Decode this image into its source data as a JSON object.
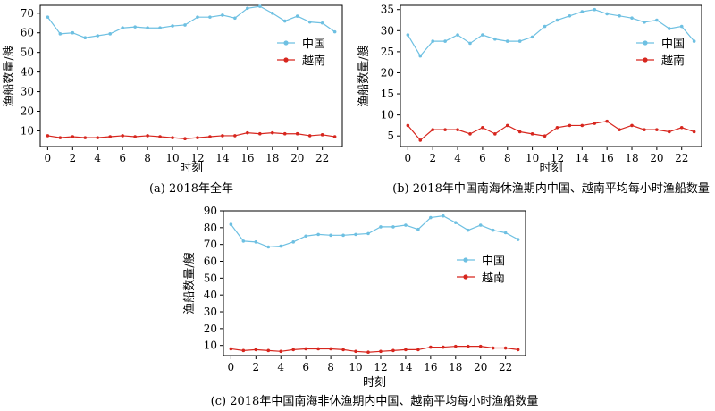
{
  "colors": {
    "china": "#6ec0e2",
    "vietnam": "#d7261e"
  },
  "chart_data": [
    {
      "type": "line",
      "caption": "(a) 2018年全年",
      "xlabel": "时刻",
      "ylabel": "渔船数量/艘",
      "x": [
        0,
        1,
        2,
        3,
        4,
        5,
        6,
        7,
        8,
        9,
        10,
        11,
        12,
        13,
        14,
        15,
        16,
        17,
        18,
        19,
        20,
        21,
        22,
        23
      ],
      "xticks": [
        0,
        2,
        4,
        6,
        8,
        10,
        12,
        14,
        16,
        18,
        20,
        22
      ],
      "ylim": [
        2,
        74
      ],
      "yticks": [
        10,
        20,
        30,
        40,
        50,
        60,
        70
      ],
      "legend_position": "center-right",
      "series": [
        {
          "name": "中国",
          "color": "#6ec0e2",
          "values": [
            68,
            59.5,
            60,
            57.5,
            58.5,
            59.5,
            62.5,
            63,
            62.5,
            62.5,
            63.5,
            64,
            68,
            68,
            69,
            67.5,
            72.5,
            73.5,
            70,
            66,
            68.5,
            65.5,
            65,
            60.5
          ]
        },
        {
          "name": "越南",
          "color": "#d7261e",
          "values": [
            7.5,
            6.5,
            7,
            6.5,
            6.5,
            7,
            7.5,
            7,
            7.5,
            7,
            6.5,
            6,
            6.5,
            7,
            7.5,
            7.5,
            9,
            8.5,
            9,
            8.5,
            8.5,
            7.5,
            8,
            7
          ]
        }
      ]
    },
    {
      "type": "line",
      "caption": "(b) 2018年中国南海休渔期内中国、越南平均每小时渔船数量",
      "xlabel": "时刻",
      "ylabel": "渔船数量/艘",
      "x": [
        0,
        1,
        2,
        3,
        4,
        5,
        6,
        7,
        8,
        9,
        10,
        11,
        12,
        13,
        14,
        15,
        16,
        17,
        18,
        19,
        20,
        21,
        22,
        23
      ],
      "xticks": [
        0,
        2,
        4,
        6,
        8,
        10,
        12,
        14,
        16,
        18,
        20,
        22
      ],
      "ylim": [
        2.5,
        36
      ],
      "yticks": [
        5,
        10,
        15,
        20,
        25,
        30,
        35
      ],
      "legend_position": "center-right",
      "series": [
        {
          "name": "中国",
          "color": "#6ec0e2",
          "values": [
            29,
            24,
            27.5,
            27.5,
            29,
            27,
            29,
            28,
            27.5,
            27.5,
            28.5,
            31,
            32.5,
            33.5,
            34.5,
            35,
            34,
            33.5,
            33,
            32,
            32.5,
            30.5,
            31,
            27.5
          ]
        },
        {
          "name": "越南",
          "color": "#d7261e",
          "values": [
            7.5,
            4,
            6.5,
            6.5,
            6.5,
            5.5,
            7,
            5.5,
            7.5,
            6,
            5.5,
            5,
            7,
            7.5,
            7.5,
            8,
            8.5,
            6.5,
            7.5,
            6.5,
            6.5,
            6,
            7,
            6
          ]
        }
      ]
    },
    {
      "type": "line",
      "caption": "(c) 2018年中国南海非休渔期内中国、越南平均每小时渔船数量",
      "xlabel": "时刻",
      "ylabel": "渔船数量/艘",
      "x": [
        0,
        1,
        2,
        3,
        4,
        5,
        6,
        7,
        8,
        9,
        10,
        11,
        12,
        13,
        14,
        15,
        16,
        17,
        18,
        19,
        20,
        21,
        22,
        23
      ],
      "xticks": [
        0,
        2,
        4,
        6,
        8,
        10,
        12,
        14,
        16,
        18,
        20,
        22
      ],
      "ylim": [
        4,
        90
      ],
      "yticks": [
        10,
        20,
        30,
        40,
        50,
        60,
        70,
        80,
        90
      ],
      "legend_position": "center-right",
      "series": [
        {
          "name": "中国",
          "color": "#6ec0e2",
          "values": [
            82,
            72,
            71.5,
            68.5,
            69,
            71.5,
            75,
            76,
            75.5,
            75.5,
            76,
            76.5,
            80.5,
            80.5,
            81.5,
            79,
            86,
            87,
            83,
            78.5,
            81.5,
            78.5,
            77,
            73
          ]
        },
        {
          "name": "越南",
          "color": "#d7261e",
          "values": [
            8,
            7,
            7.5,
            7,
            6.5,
            7.5,
            8,
            8,
            8,
            7.5,
            6.5,
            6,
            6.5,
            7,
            7.5,
            7.5,
            9,
            9,
            9.5,
            9.5,
            9.5,
            8.5,
            8.5,
            7.5
          ]
        }
      ]
    }
  ]
}
